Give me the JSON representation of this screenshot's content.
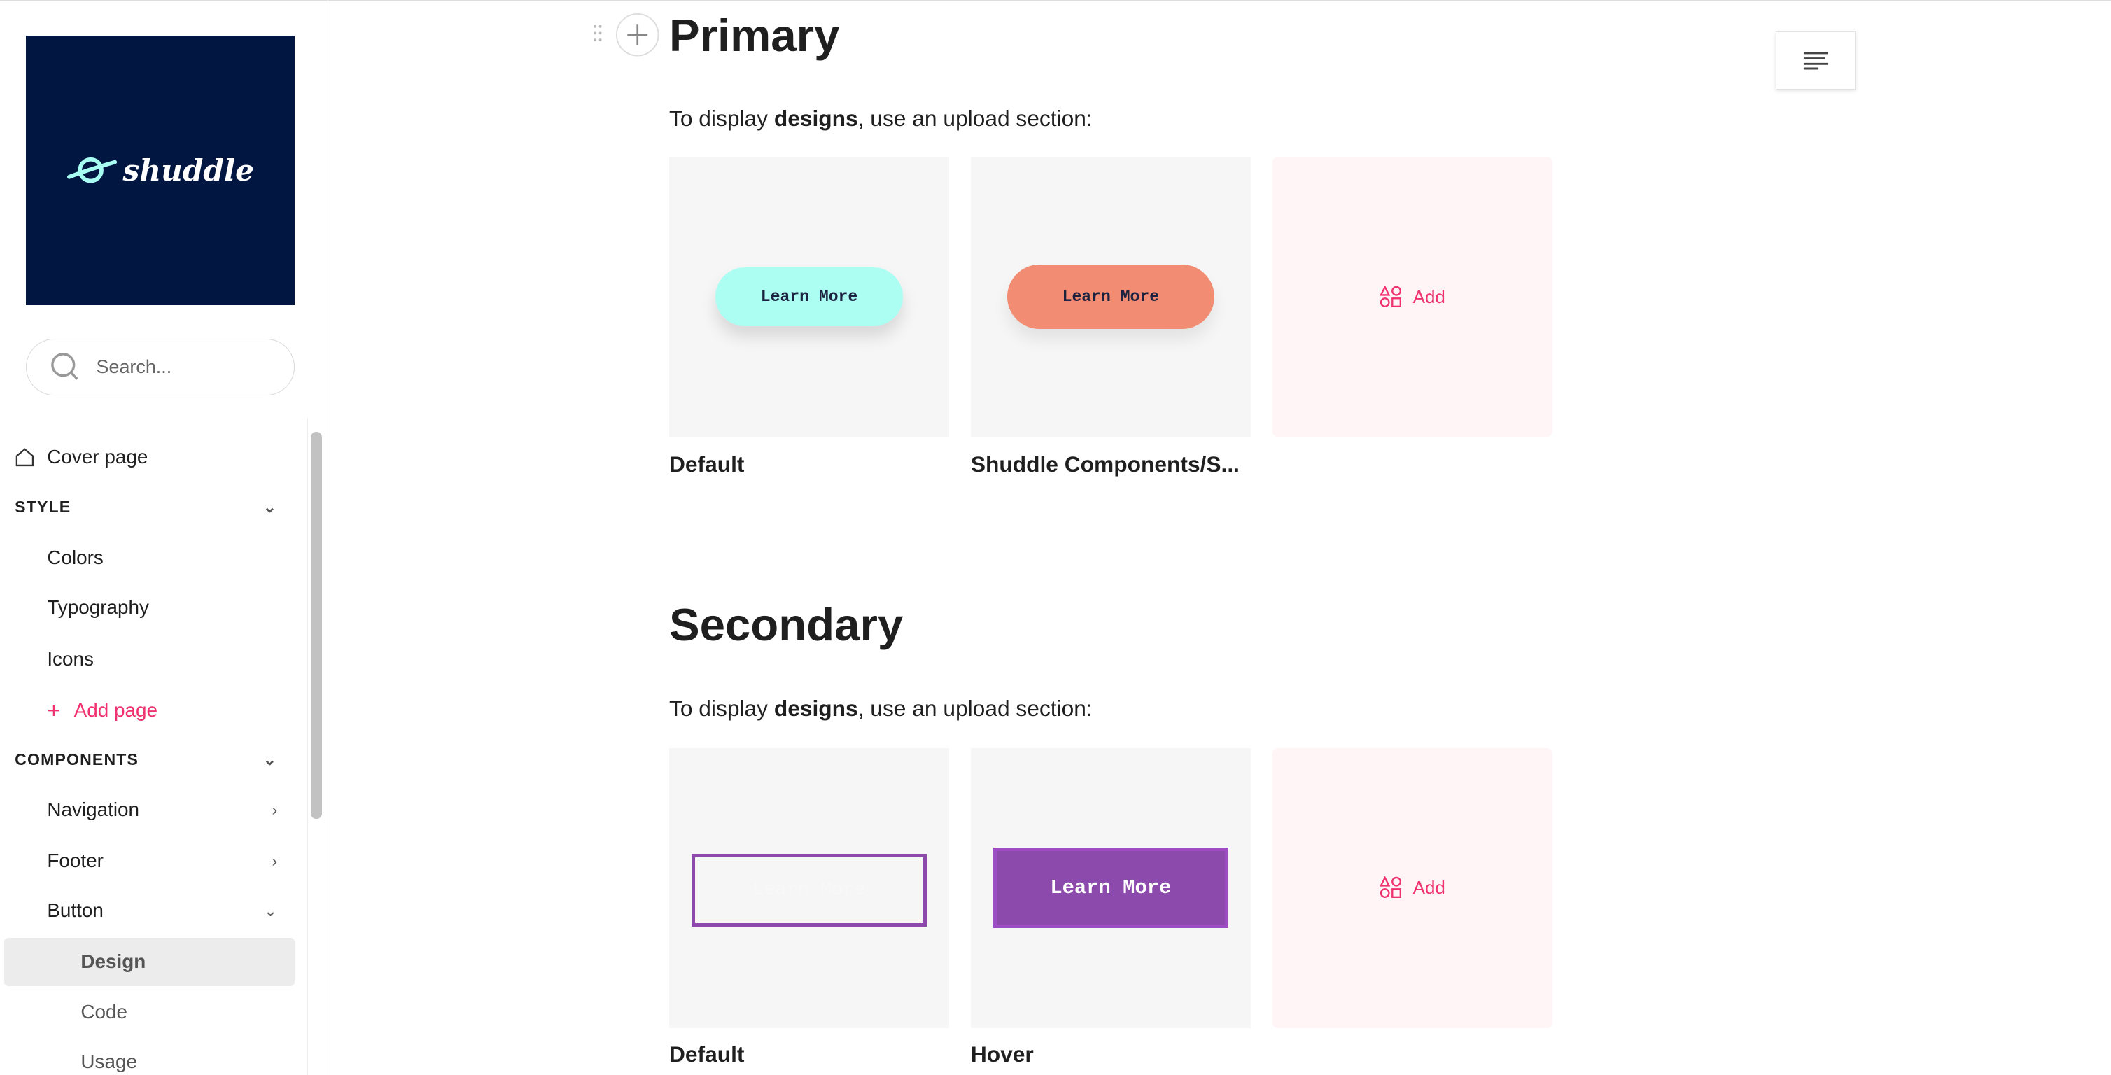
{
  "brand": {
    "logo_text": "shuddle",
    "logo_bg": "#021642",
    "logo_accent": "#a8fdf3"
  },
  "search": {
    "placeholder": "Search..."
  },
  "sidebar": {
    "cover": "Cover page",
    "style_section": "STYLE",
    "style_items": [
      "Colors",
      "Typography",
      "Icons"
    ],
    "add_page": "Add page",
    "components_section": "COMPONENTS",
    "components": {
      "navigation": "Navigation",
      "footer": "Footer",
      "button": "Button"
    },
    "button_sub": {
      "design": "Design",
      "code": "Code",
      "usage": "Usage"
    },
    "selected": "Design"
  },
  "main": {
    "primary": {
      "title": "Primary",
      "para_pre": "To display ",
      "para_bold": "designs",
      "para_post": ", use an upload section:",
      "cards": [
        {
          "button": "Learn More",
          "label": "Default",
          "color": "#adfef2"
        },
        {
          "button": "Learn More",
          "label": "Shuddle Components/S...",
          "color": "#f28c73"
        }
      ],
      "add": "Add"
    },
    "secondary": {
      "title": "Secondary",
      "para_pre": "To display ",
      "para_bold": "designs",
      "para_post": ", use an upload section:",
      "cards": [
        {
          "button": "Learn More",
          "label": "Default",
          "color": "#8c4aad"
        },
        {
          "button": "Learn More",
          "label": "Hover",
          "color": "#8c4aad"
        }
      ],
      "add": "Add"
    }
  },
  "accent": "#f0306f"
}
